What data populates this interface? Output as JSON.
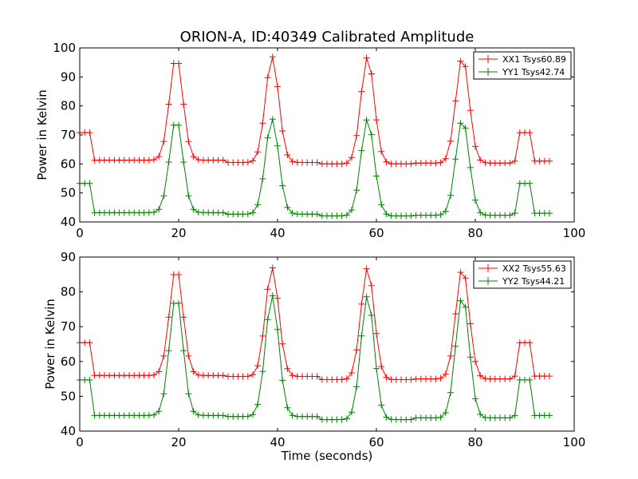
{
  "chart_data": [
    {
      "type": "line",
      "title": "ORION-A, ID:40349 Calibrated Amplitude",
      "xlabel": "",
      "ylabel": "Power in Kelvin",
      "xlim": [
        0,
        100
      ],
      "ylim": [
        40,
        100
      ],
      "xticks": [
        "0",
        "20",
        "40",
        "60",
        "80",
        "100"
      ],
      "yticks": [
        "40",
        "50",
        "60",
        "70",
        "80",
        "90",
        "100"
      ],
      "legend_position": "top-right",
      "grid": false,
      "marker": "+",
      "series": [
        {
          "name": "XX1 Tsys60.89",
          "color": "#ff0000",
          "high": 70.8,
          "low": [
            61.3,
            60.5,
            60.0,
            60.3,
            61.0
          ],
          "peak": 97.0
        },
        {
          "name": "YY1 Tsys42.74",
          "color": "#008000",
          "high": 53.3,
          "low": [
            43.2,
            42.7,
            42.1,
            42.3,
            43.0
          ],
          "peak": 75.5
        }
      ]
    },
    {
      "type": "line",
      "title": "",
      "xlabel": "Time (seconds)",
      "ylabel": "Power in Kelvin",
      "xlim": [
        0,
        100
      ],
      "ylim": [
        40,
        90
      ],
      "xticks": [
        "0",
        "20",
        "40",
        "60",
        "80",
        "100"
      ],
      "yticks": [
        "40",
        "50",
        "60",
        "70",
        "80",
        "90"
      ],
      "legend_position": "top-right",
      "grid": false,
      "marker": "+",
      "series": [
        {
          "name": "XX2 Tsys55.63",
          "color": "#ff0000",
          "high": 65.4,
          "low": [
            56.0,
            55.7,
            54.8,
            55.0,
            55.8
          ],
          "peak": 87.0
        },
        {
          "name": "YY2 Tsys44.21",
          "color": "#008000",
          "high": 54.7,
          "low": [
            44.5,
            44.2,
            43.3,
            43.8,
            44.5
          ],
          "peak": 79.0
        }
      ]
    }
  ],
  "time_axis": {
    "start": 0,
    "end": 95,
    "step": 1,
    "high_windows": [
      [
        0,
        2.6
      ],
      [
        88.8,
        91.3
      ]
    ],
    "peak_centers": [
      19.5,
      38.9,
      58.2,
      77.4
    ],
    "peak_sigma": 1.35
  }
}
